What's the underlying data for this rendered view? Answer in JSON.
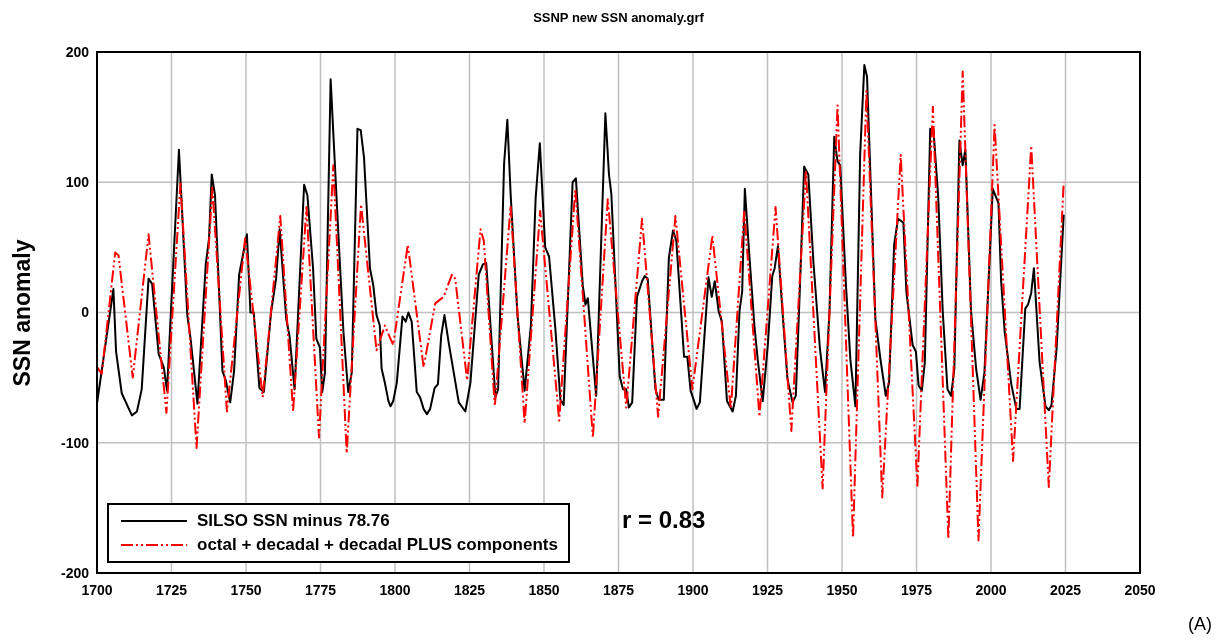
{
  "chart_data": {
    "type": "line",
    "title": "SSNP new SSN anomaly.grf",
    "ylabel": "SSN anomaly",
    "xlim": [
      1700,
      2050
    ],
    "xticks": [
      1700,
      1725,
      1750,
      1775,
      1800,
      1825,
      1850,
      1875,
      1900,
      1925,
      1950,
      1975,
      2000,
      2025,
      2050
    ],
    "ylim": [
      -200,
      200
    ],
    "yticks": [
      -200,
      -100,
      0,
      100,
      200
    ],
    "grid": true,
    "legend": "bottom left",
    "marker": "none",
    "annotations": [
      "r = 0.83",
      "(A)"
    ],
    "series": [
      {
        "name": "SILSO SSN minus 78.76",
        "color": "#000000",
        "line_style": "solid",
        "x": [
          1700,
          1705.5,
          1706.4,
          1708.3,
          1711.7,
          1713.4,
          1715,
          1717.3,
          1718.5,
          1720.7,
          1722.4,
          1723.5,
          1727.5,
          1730.3,
          1731.4,
          1733.7,
          1736.5,
          1737.6,
          1738.5,
          1739.6,
          1742.1,
          1743.2,
          1744.7,
          1746,
          1747.7,
          1750.3,
          1751.5,
          1752.6,
          1754.5,
          1756,
          1758.4,
          1760.1,
          1761.3,
          1763.5,
          1764.6,
          1766.3,
          1769.5,
          1770.6,
          1772.5,
          1773.6,
          1774.8,
          1775.6,
          1776.5,
          1778.4,
          1781,
          1782.7,
          1784.3,
          1785.5,
          1787.4,
          1788.5,
          1789.6,
          1791.6,
          1792.7,
          1793.8,
          1794.9,
          1795.5,
          1796.6,
          1797.8,
          1798.5,
          1799.4,
          1800.6,
          1802.5,
          1803.6,
          1804.5,
          1805.6,
          1807.3,
          1808.4,
          1809.6,
          1810.7,
          1811.8,
          1813.3,
          1814.4,
          1815.5,
          1816.6,
          1818,
          1821.4,
          1823.6,
          1825.3,
          1828.1,
          1829.5,
          1830.6,
          1833.7,
          1834.6,
          1836.6,
          1837.7,
          1838.8,
          1841.1,
          1843.5,
          1845.6,
          1847.2,
          1848.6,
          1850.4,
          1851.7,
          1853.8,
          1855.5,
          1856.6,
          1859.6,
          1860.7,
          1863,
          1863.9,
          1864.7,
          1867.5,
          1870.6,
          1871.8,
          1872.6,
          1875.4,
          1876.5,
          1877.6,
          1878.5,
          1879.6,
          1881.2,
          1882.9,
          1883.8,
          1884.8,
          1887.4,
          1888.5,
          1890.2,
          1891.9,
          1893.3,
          1894.4,
          1897,
          1898.1,
          1899.2,
          1901.2,
          1902.3,
          1905.2,
          1906.3,
          1907.3,
          1908.6,
          1909.7,
          1911.4,
          1913.3,
          1914.4,
          1915.6,
          1916.5,
          1917.4,
          1918.9,
          1920.6,
          1921.8,
          1923.4,
          1925.1,
          1926.6,
          1927.4,
          1928.5,
          1930.2,
          1931.7,
          1933.4,
          1934.5,
          1935.9,
          1937.3,
          1938.7,
          1940.4,
          1942.6,
          1944.3,
          1945.8,
          1947.4,
          1948.5,
          1949.4,
          1951.3,
          1952.8,
          1954.5,
          1956.1,
          1957.5,
          1958.4,
          1961.2,
          1962.9,
          1964.7,
          1965.8,
          1967.5,
          1968.8,
          1970.6,
          1971.6,
          1973.7,
          1974.8,
          1975.7,
          1976.8,
          1977.8,
          1979.6,
          1980.7,
          1982.3,
          1983.8,
          1985.4,
          1986.6,
          1987.7,
          1989.4,
          1990.5,
          1991.4,
          1993.3,
          1995,
          1996.5,
          1997.8,
          2000.6,
          2002.5,
          2003.4,
          2004.6,
          2006.8,
          2008.5,
          2009.6,
          2011.5,
          2012.4,
          2013.5,
          2014.4,
          2016.3,
          2018.3,
          2019.4,
          2020.3,
          2022,
          2024.4
        ],
        "values": [
          -70,
          18,
          -30,
          -62,
          -79,
          -76,
          -59,
          26,
          22,
          -32,
          -42,
          -60,
          125,
          -2,
          -20,
          -70,
          37,
          57,
          106,
          90,
          -45,
          -52,
          -69,
          -45,
          29,
          60,
          0,
          0,
          -58,
          -61,
          0,
          26,
          64,
          -5,
          -18,
          -59,
          98,
          90,
          34,
          -20,
          -27,
          -61,
          -46,
          179,
          60,
          -15,
          -61,
          -46,
          141,
          140,
          119,
          34,
          21,
          -2,
          -10,
          -43,
          -54,
          -68,
          -72,
          -68,
          -54,
          -3,
          -7,
          0,
          -7,
          -61,
          -65,
          -74,
          -78,
          -74,
          -58,
          -55,
          -18,
          -2,
          -23,
          -69,
          -76,
          -54,
          29,
          37,
          38,
          -65,
          -59,
          114,
          148,
          91,
          -2,
          -60,
          -10,
          88,
          130,
          50,
          43,
          -12,
          -67,
          -71,
          100,
          103,
          21,
          6,
          11,
          -64,
          153,
          106,
          91,
          -49,
          -59,
          -59,
          -73,
          -69,
          12,
          24,
          28,
          26,
          -59,
          -67,
          -67,
          42,
          63,
          55,
          -34,
          -34,
          -60,
          -74,
          -69,
          27,
          12,
          24,
          1,
          -7,
          -68,
          -76,
          -64,
          1,
          16,
          95,
          44,
          -10,
          -38,
          -68,
          -25,
          28,
          34,
          51,
          -5,
          -51,
          -69,
          -64,
          21,
          112,
          106,
          39,
          -28,
          -61,
          1,
          135,
          116,
          113,
          22,
          -36,
          -72,
          122,
          190,
          181,
          -5,
          -36,
          -64,
          -54,
          52,
          72,
          69,
          16,
          -25,
          -30,
          -56,
          -60,
          -38,
          141,
          140,
          88,
          1,
          -59,
          -64,
          -43,
          132,
          113,
          125,
          1,
          -43,
          -67,
          -46,
          95,
          84,
          24,
          -15,
          -55,
          -74,
          -74,
          3,
          6,
          15,
          34,
          -38,
          -72,
          -75,
          -71,
          -28,
          75
        ]
      },
      {
        "name": "octal + decadal + decadal PLUS components",
        "color": "#ff0000",
        "line_style": "dashed",
        "x": [
          1700,
          1701.6,
          1706.1,
          1707.2,
          1712,
          1717.3,
          1723.3,
          1728,
          1733.4,
          1738.7,
          1743.6,
          1749.7,
          1755.6,
          1761.5,
          1765.8,
          1770.3,
          1774.5,
          1779.3,
          1783.8,
          1788.6,
          1793.8,
          1796.6,
          1799.4,
          1804.3,
          1809.6,
          1813.5,
          1816.3,
          1819.1,
          1820.2,
          1824.2,
          1828.7,
          1829.8,
          1833.5,
          1838.8,
          1843.5,
          1848.7,
          1855.1,
          1860.5,
          1866.4,
          1871.4,
          1877.6,
          1882.9,
          1888.3,
          1894.1,
          1899.8,
          1906.5,
          1912.7,
          1917.2,
          1922.3,
          1927.7,
          1933,
          1937.9,
          1943.5,
          1948.5,
          1953.7,
          1958.2,
          1963.5,
          1969.7,
          1975.3,
          1980.5,
          1985.7,
          1990.5,
          1995.8,
          2001.2,
          2007.4,
          2013.5,
          2019.4,
          2024.4
        ],
        "values": [
          -42,
          -47,
          46,
          44,
          -50,
          60,
          -77,
          99,
          -104,
          96,
          -76,
          57,
          -65,
          74,
          -76,
          81,
          -96,
          113,
          -108,
          83,
          -29,
          -10,
          -25,
          52,
          -42,
          7,
          12,
          29,
          26,
          -52,
          64,
          55,
          -72,
          82,
          -85,
          78,
          -83,
          95,
          -96,
          87,
          -73,
          72,
          -80,
          74,
          -59,
          59,
          -74,
          78,
          -80,
          81,
          -91,
          109,
          -135,
          159,
          -173,
          170,
          -142,
          121,
          -133,
          158,
          -174,
          185,
          -175,
          144,
          -114,
          128,
          -134,
          100
        ]
      }
    ]
  }
}
